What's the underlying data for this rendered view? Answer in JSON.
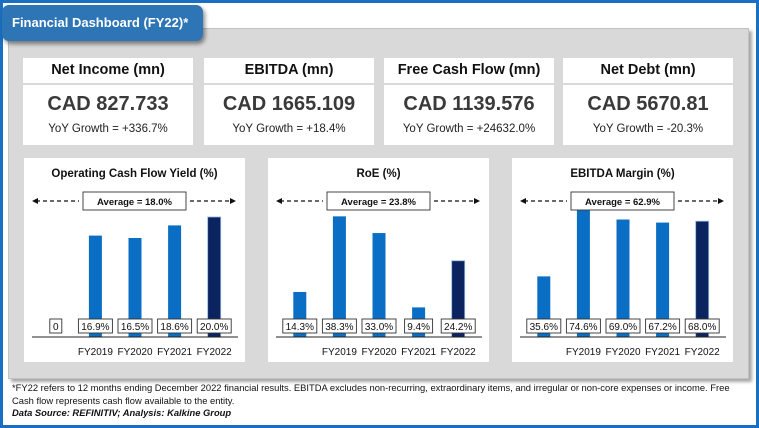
{
  "header": {
    "title": "Financial Dashboard (FY22)*"
  },
  "kpis": [
    {
      "title": "Net Income (mn)",
      "value": "CAD 827.733",
      "growth": "YoY Growth = +336.7%"
    },
    {
      "title": "EBITDA (mn)",
      "value": "CAD 1665.109",
      "growth": "YoY Growth = +18.4%"
    },
    {
      "title": "Free Cash Flow (mn)",
      "value": "CAD  1139.576",
      "growth": "YoY Growth = +24632.0%"
    },
    {
      "title": "Net Debt (mn)",
      "value": "CAD 5670.81",
      "growth": "YoY Growth = -20.3%"
    }
  ],
  "colors": {
    "bar": "#0a6ec4",
    "bar_latest": "#0b2460",
    "frame": "#1b6fc2",
    "title_tab": "#2e75b6"
  },
  "chart_data": [
    {
      "type": "bar",
      "title": "Operating Cash Flow Yield (%)",
      "categories": [
        "",
        "FY2019",
        "FY2020",
        "FY2021",
        "FY2022"
      ],
      "values": [
        0,
        16.9,
        16.5,
        18.6,
        20.0
      ],
      "labels": [
        "0",
        "16.9%",
        "16.5%",
        "18.6%",
        "20.0%"
      ],
      "average_label": "Average = 18.0%",
      "ylim": [
        0,
        21
      ]
    },
    {
      "type": "bar",
      "title": "RoE (%)",
      "categories": [
        "",
        "FY2019",
        "FY2020",
        "FY2021",
        "FY2022"
      ],
      "values": [
        14.3,
        38.3,
        33.0,
        9.4,
        24.2
      ],
      "labels": [
        "14.3%",
        "38.3%",
        "33.0%",
        "9.4%",
        "24.2%"
      ],
      "average_label": "Average = 23.8%",
      "ylim": [
        0,
        40
      ]
    },
    {
      "type": "bar",
      "title": "EBITDA Margin (%)",
      "categories": [
        "",
        "FY2019",
        "FY2020",
        "FY2021",
        "FY2022"
      ],
      "values": [
        35.6,
        74.6,
        69.0,
        67.2,
        68.0
      ],
      "labels": [
        "35.6%",
        "74.6%",
        "69.0%",
        "67.2%",
        "68.0%"
      ],
      "average_label": "Average = 62.9%",
      "ylim": [
        0,
        74
      ]
    }
  ],
  "footnote": {
    "text": "*FY22  refers to 12 months ending December 2022 financial results. EBITDA excludes non-recurring, extraordinary items, and irregular or non-core expenses or income. Free Cash flow represents cash flow available to the entity.",
    "source": "Data Source: REFINITIV; Analysis: Kalkine Group"
  }
}
